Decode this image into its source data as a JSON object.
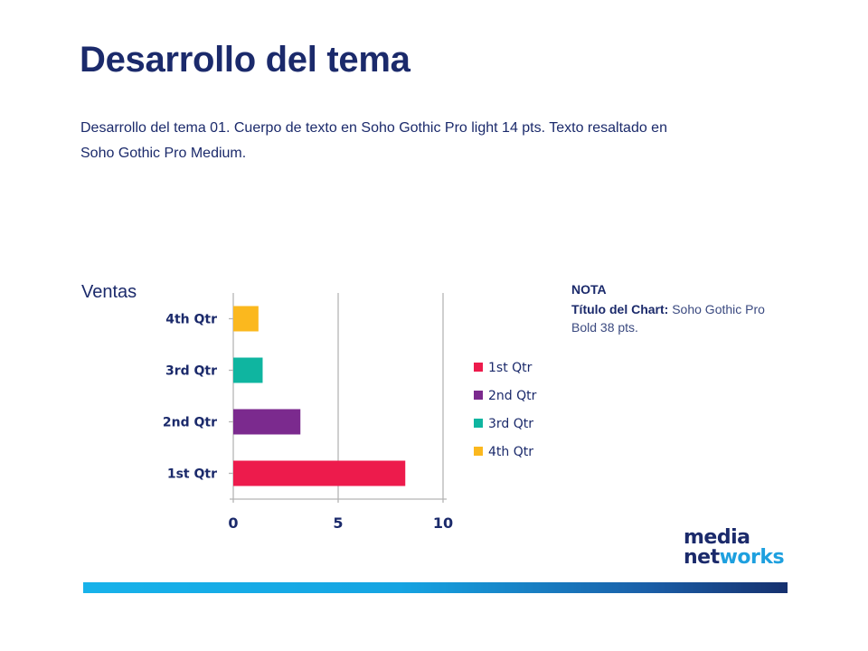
{
  "slide": {
    "title": "Desarrollo del tema",
    "body_line1": "Desarrollo del tema 01. Cuerpo de texto en Soho Gothic Pro light 14 pts. Texto resaltado en",
    "body_line2": "Soho Gothic Pro Medium.",
    "chart_label": "Ventas"
  },
  "note": {
    "heading": "NOTA",
    "bold_part": "Título del Chart:",
    "regular_part": " Soho Gothic Pro Bold  38 pts."
  },
  "logo": {
    "line1": "media",
    "line2_a": "net",
    "line2_b": "works"
  },
  "colors": {
    "title": "#1b2a6b",
    "q1": "#ed1b4c",
    "q2": "#7b2a8e",
    "q3": "#0fb5a0",
    "q4": "#fbb81e",
    "footer_bar": "#17b2ea"
  },
  "chart_data": {
    "type": "bar",
    "orientation": "horizontal",
    "categories": [
      "1st Qtr",
      "2nd Qtr",
      "3rd Qtr",
      "4th Qtr"
    ],
    "values": [
      8.2,
      3.2,
      1.4,
      1.2
    ],
    "colors": [
      "#ed1b4c",
      "#7b2a8e",
      "#0fb5a0",
      "#fbb81e"
    ],
    "legend": [
      "1st Qtr",
      "2nd Qtr",
      "3rd Qtr",
      "4th Qtr"
    ],
    "legend_position": "right",
    "xticks": [
      "0",
      "5",
      "10"
    ],
    "xlim": [
      0,
      10
    ],
    "grid": true,
    "title": "",
    "xlabel": "",
    "ylabel": ""
  }
}
